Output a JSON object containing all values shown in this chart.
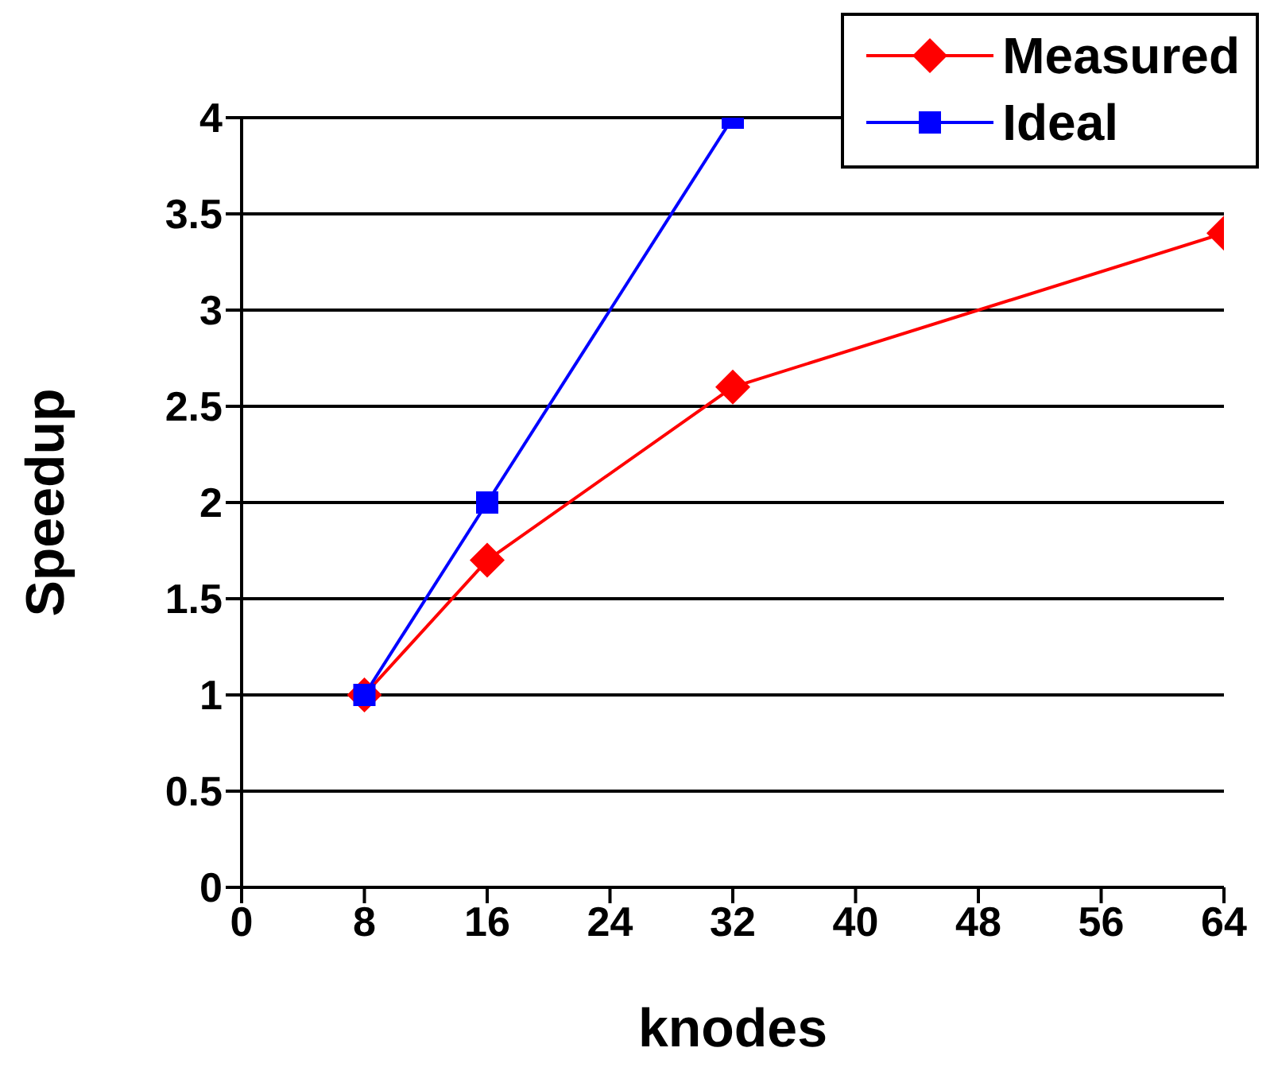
{
  "chart_data": {
    "type": "line",
    "xlabel": "knodes",
    "ylabel": "Speedup",
    "x": [
      8,
      16,
      32,
      64
    ],
    "series": [
      {
        "name": "Measured",
        "color": "#ff0000",
        "values": [
          1,
          1.7,
          2.6,
          3.4
        ],
        "marker": "diamond"
      },
      {
        "name": "Ideal",
        "color": "#0000ff",
        "values": [
          1,
          2,
          4,
          null
        ],
        "marker": "square"
      }
    ],
    "xlim": [
      0,
      64
    ],
    "xticks": [
      0,
      8,
      16,
      24,
      32,
      40,
      48,
      56,
      64
    ],
    "ylim": [
      0,
      4
    ],
    "yticks": [
      0,
      0.5,
      1,
      1.5,
      2,
      2.5,
      3,
      3.5,
      4
    ],
    "grid": "y",
    "legend": "top right"
  }
}
